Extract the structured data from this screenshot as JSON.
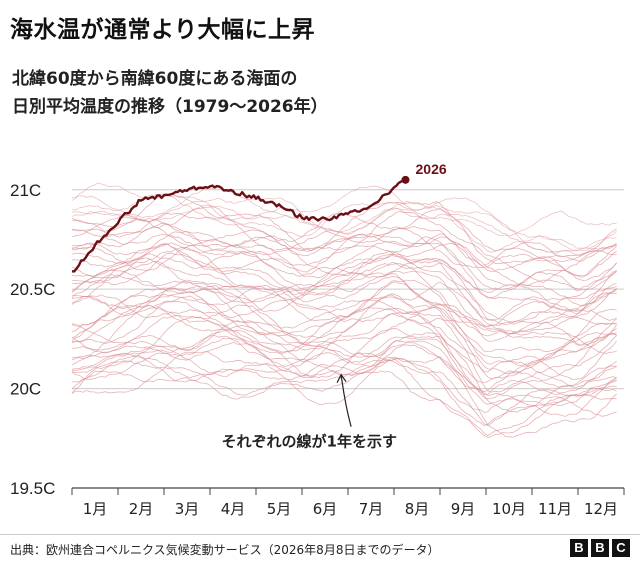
{
  "title": "海水温が通常より大幅に上昇",
  "subtitle_line1": "北緯60度から南緯60度にある海面の",
  "subtitle_line2": "日別平均温度の推移（1979～2026年）",
  "source": "出典：欧州連合コペルニクス気候変動サービス（2026年8月8日までのデータ）",
  "logo": [
    "B",
    "B",
    "C"
  ],
  "colors": {
    "highlight": "#6b0f16",
    "history": "#d98a8f",
    "grid": "#cccccc"
  },
  "chart_data": {
    "type": "line",
    "ylabel": "",
    "xlabel": "",
    "ylim": [
      19.5,
      21.2
    ],
    "yticks": [
      19.5,
      20,
      20.5,
      21
    ],
    "ytick_labels": [
      "19.5C",
      "20C",
      "20.5C",
      "21C"
    ],
    "categories": [
      "1月",
      "2月",
      "3月",
      "4月",
      "5月",
      "6月",
      "7月",
      "8月",
      "9月",
      "10月",
      "11月",
      "12月"
    ],
    "grid": true,
    "highlight": {
      "name": "2026",
      "x_months": [
        0,
        0.5,
        1,
        1.5,
        2,
        2.5,
        3,
        3.5,
        4,
        4.5,
        5,
        5.5,
        6,
        6.5,
        7,
        7.25
      ],
      "values": [
        20.58,
        20.72,
        20.84,
        20.95,
        20.97,
        21.0,
        21.02,
        20.99,
        20.96,
        20.92,
        20.86,
        20.85,
        20.88,
        20.92,
        21.01,
        21.05
      ]
    },
    "history_band": {
      "description_label": "それぞれの線が1年を示す",
      "x_months": [
        0,
        1,
        2,
        3,
        4,
        5,
        6,
        7,
        8,
        9,
        10,
        11,
        11.9
      ],
      "low": [
        19.85,
        19.92,
        19.98,
        19.97,
        19.93,
        19.86,
        19.9,
        20.0,
        19.92,
        19.62,
        19.7,
        19.75,
        19.85
      ],
      "high": [
        21.05,
        21.05,
        21.08,
        21.07,
        21.02,
        20.96,
        21.0,
        21.07,
        21.07,
        20.96,
        20.9,
        20.85,
        20.95
      ],
      "year_count": 47
    }
  }
}
